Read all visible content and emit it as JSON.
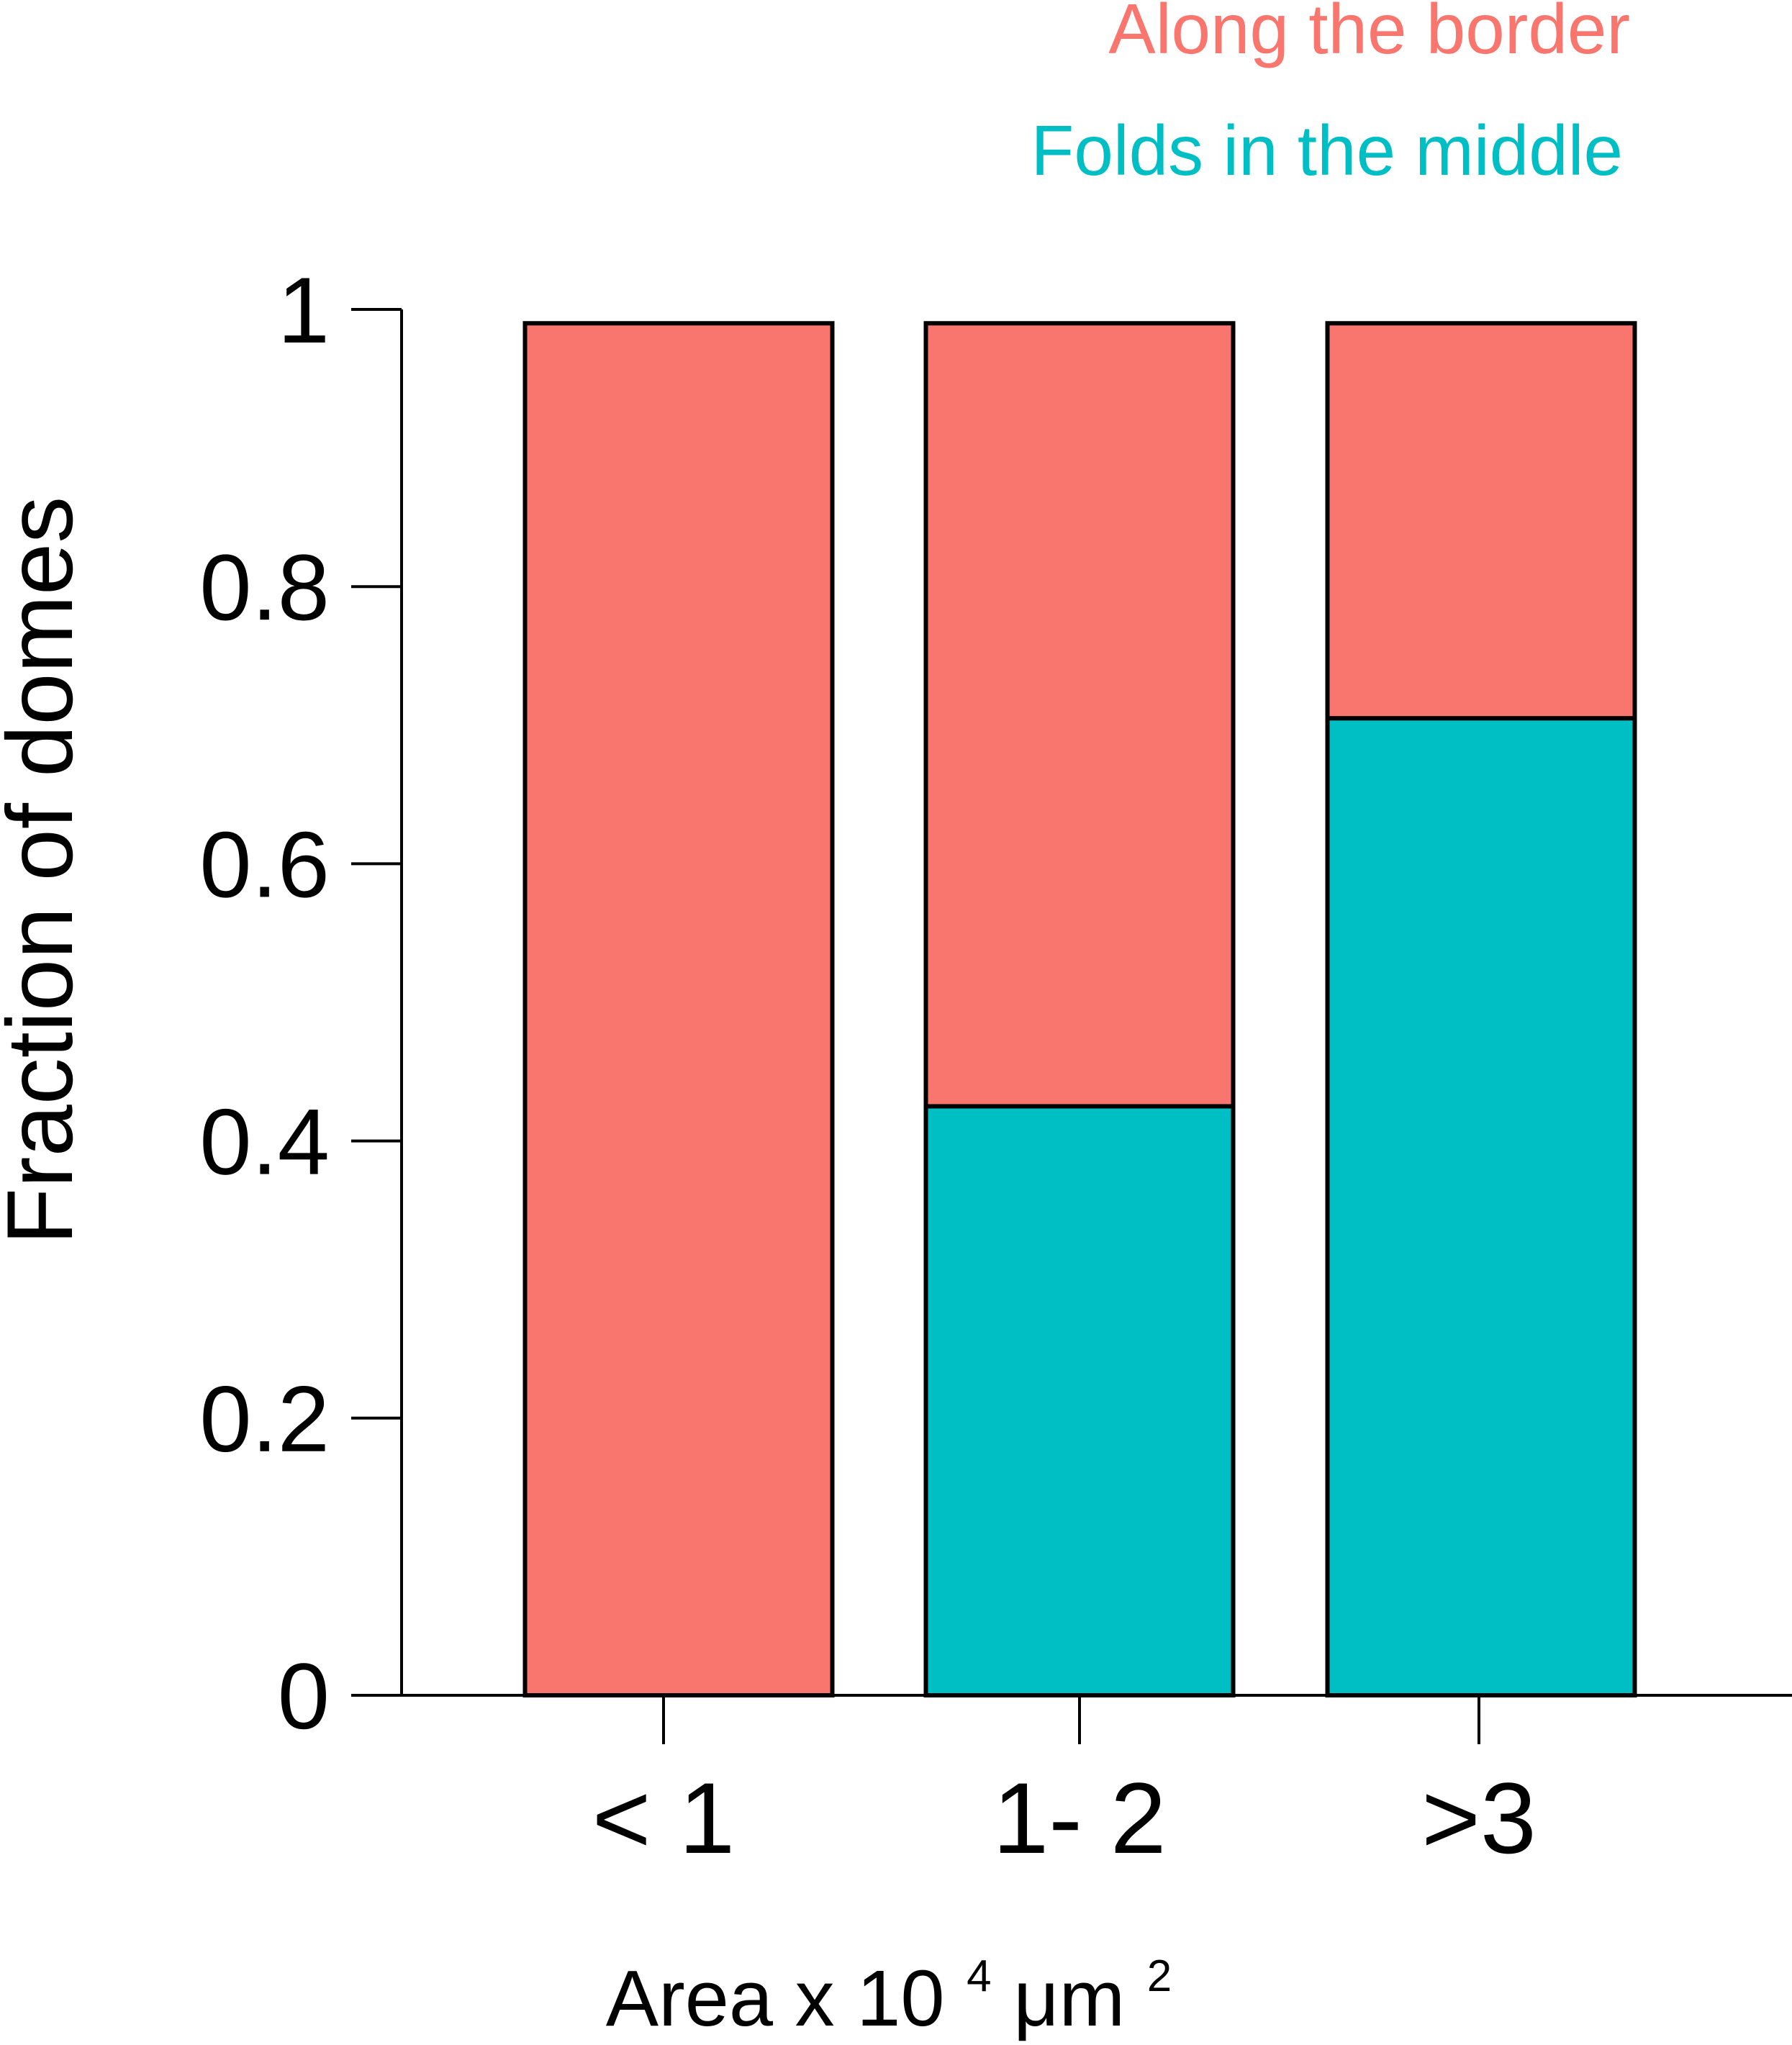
{
  "chart_data": {
    "type": "bar",
    "stacked": true,
    "categories": [
      "< 1",
      "1- 2",
      ">3"
    ],
    "series": [
      {
        "name": "Folds in the middle",
        "color": "#00BFC4",
        "values": [
          0,
          0.425,
          0.705
        ]
      },
      {
        "name": "Along the border",
        "color": "#F8766D",
        "values": [
          0.99,
          0.565,
          0.285
        ]
      }
    ],
    "legend": {
      "placement": "top-right",
      "entries": [
        "Along the border",
        "Folds in the middle"
      ]
    },
    "ylabel": "Fraction of domes",
    "xlabel": {
      "base": "Area x 10",
      "exp1": "4",
      "unit": "μm",
      "exp2": "2"
    },
    "yticks": [
      0,
      0.2,
      0.4,
      0.6,
      0.8,
      1
    ],
    "ytick_labels": [
      "0",
      "0.2",
      "0.4",
      "0.6",
      "0.8",
      "1"
    ],
    "ylim": [
      0,
      1
    ],
    "grid": false
  }
}
